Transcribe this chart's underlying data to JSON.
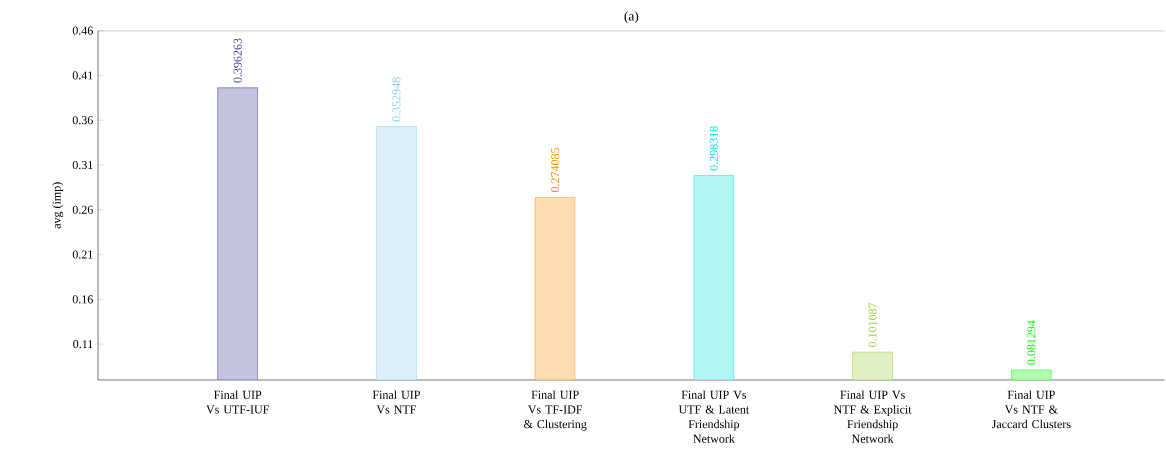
{
  "chart_data": {
    "type": "bar",
    "title": "(a)",
    "ylabel": "avg (imp)",
    "categories": [
      "Final UIP Vs UTF-IUF",
      "Final UIP Vs NTF",
      "Final UIP Vs TF-IDF & Clustering",
      "Final UIP Vs UTF & Latent Friendship Network",
      "Final UIP Vs NTF & Explicit Friendship Network",
      "Final UIP Vs NTF & Jaccard Clusters"
    ],
    "values": [
      0.396263,
      0.352948,
      0.274085,
      0.298318,
      0.101087,
      0.081294
    ],
    "colors": [
      "#3c3c9c",
      "#87ceeb",
      "#ff8c00",
      "#00e0e0",
      "#9acd32",
      "#00ff00"
    ],
    "data_labels": true,
    "ylim": [
      0.07,
      0.46
    ],
    "yticks": [
      0.11,
      0.16,
      0.21,
      0.26,
      0.31,
      0.36,
      0.41,
      0.46
    ],
    "grid": false
  }
}
